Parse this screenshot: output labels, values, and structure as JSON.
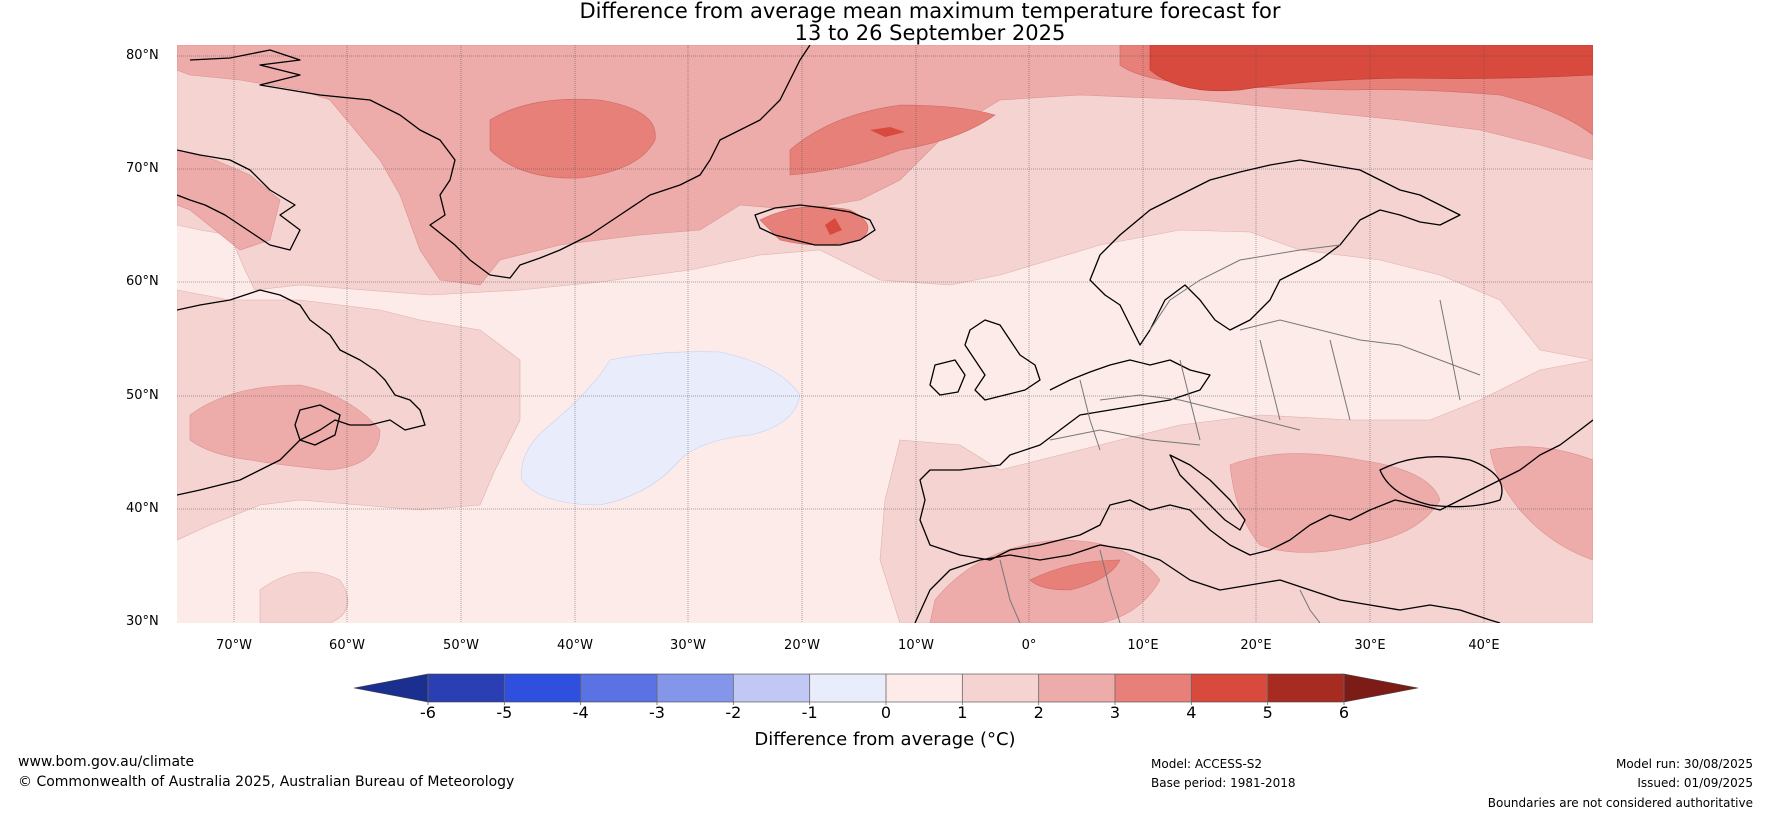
{
  "title_line1": "Difference from average mean maximum temperature forecast for",
  "title_line2": "13 to 26 September 2025",
  "lat_ticks": [
    "80°N",
    "70°N",
    "60°N",
    "50°N",
    "40°N",
    "30°N"
  ],
  "lon_ticks": [
    "70°W",
    "60°W",
    "50°W",
    "40°W",
    "30°W",
    "20°W",
    "10°W",
    "0°",
    "10°E",
    "20°E",
    "30°E",
    "40°E"
  ],
  "colorbar": {
    "ticks": [
      "-6",
      "-5",
      "-4",
      "-3",
      "-2",
      "-1",
      "0",
      "1",
      "2",
      "3",
      "4",
      "5",
      "6"
    ],
    "colors": [
      "#1a2f8f",
      "#2a3fb4",
      "#2f4fdf",
      "#5a72e4",
      "#8496ea",
      "#c0c8f3",
      "#e8ecfb",
      "#fcebe9",
      "#f4d3d1",
      "#edabaa",
      "#e68079",
      "#d94a3e",
      "#a82b22",
      "#7d1c16"
    ],
    "label": "Difference from average (°C)"
  },
  "footer": {
    "website": "www.bom.gov.au/climate",
    "copyright": "© Commonwealth of Australia 2025, Australian Bureau of Meteorology",
    "model": "Model: ACCESS-S2",
    "base_period": "Base period: 1981-2018",
    "model_run": "Model run: 30/08/2025",
    "issued": "Issued: 01/09/2025",
    "boundaries_note": "Boundaries are not considered authoritative"
  }
}
